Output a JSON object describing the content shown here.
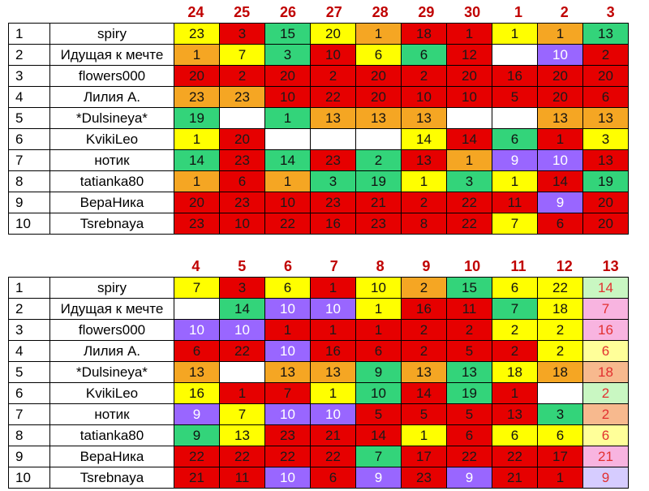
{
  "top": {
    "days": [
      "24",
      "25",
      "26",
      "27",
      "28",
      "29",
      "30",
      "1",
      "2",
      "3"
    ],
    "rows": [
      {
        "n": "1",
        "name": "spiry",
        "cells": [
          [
            "23",
            "y"
          ],
          [
            "3",
            "r"
          ],
          [
            "15",
            "g"
          ],
          [
            "20",
            "y"
          ],
          [
            "1",
            "o"
          ],
          [
            "18",
            "r"
          ],
          [
            "1",
            "r"
          ],
          [
            "1",
            "y"
          ],
          [
            "1",
            "o"
          ],
          [
            "13",
            "g"
          ]
        ]
      },
      {
        "n": "2",
        "name": "Идущая к мечте",
        "cells": [
          [
            "1",
            "o"
          ],
          [
            "7",
            "y"
          ],
          [
            "3",
            "g"
          ],
          [
            "10",
            "r"
          ],
          [
            "6",
            "y"
          ],
          [
            "6",
            "g"
          ],
          [
            "12",
            "r"
          ],
          [
            "",
            "w"
          ],
          [
            "10",
            "p"
          ],
          [
            "2",
            "r"
          ]
        ]
      },
      {
        "n": "3",
        "name": "flowers000",
        "cells": [
          [
            "20",
            "r"
          ],
          [
            "2",
            "r"
          ],
          [
            "20",
            "r"
          ],
          [
            "2",
            "r"
          ],
          [
            "20",
            "r"
          ],
          [
            "2",
            "r"
          ],
          [
            "20",
            "r"
          ],
          [
            "16",
            "r"
          ],
          [
            "20",
            "r"
          ],
          [
            "20",
            "r"
          ]
        ]
      },
      {
        "n": "4",
        "name": "Лилия А.",
        "cells": [
          [
            "23",
            "o"
          ],
          [
            "23",
            "o"
          ],
          [
            "10",
            "r"
          ],
          [
            "22",
            "r"
          ],
          [
            "20",
            "r"
          ],
          [
            "10",
            "r"
          ],
          [
            "10",
            "r"
          ],
          [
            "5",
            "r"
          ],
          [
            "20",
            "r"
          ],
          [
            "6",
            "r"
          ]
        ]
      },
      {
        "n": "5",
        "name": "*Dulsineya*",
        "cells": [
          [
            "19",
            "g"
          ],
          [
            "",
            "w"
          ],
          [
            "1",
            "g"
          ],
          [
            "13",
            "o"
          ],
          [
            "13",
            "o"
          ],
          [
            "13",
            "o"
          ],
          [
            "",
            "w"
          ],
          [
            "",
            "w"
          ],
          [
            "13",
            "o"
          ],
          [
            "13",
            "o"
          ]
        ]
      },
      {
        "n": "6",
        "name": "KvikiLeo",
        "cells": [
          [
            "1",
            "y"
          ],
          [
            "20",
            "r"
          ],
          [
            "",
            "w"
          ],
          [
            "",
            "w"
          ],
          [
            "",
            "w"
          ],
          [
            "14",
            "y"
          ],
          [
            "14",
            "r"
          ],
          [
            "6",
            "g"
          ],
          [
            "1",
            "r"
          ],
          [
            "3",
            "y"
          ]
        ]
      },
      {
        "n": "7",
        "name": "нотик",
        "cells": [
          [
            "14",
            "g"
          ],
          [
            "23",
            "r"
          ],
          [
            "14",
            "g"
          ],
          [
            "23",
            "r"
          ],
          [
            "2",
            "g"
          ],
          [
            "13",
            "r"
          ],
          [
            "1",
            "o"
          ],
          [
            "9",
            "p"
          ],
          [
            "10",
            "p"
          ],
          [
            "13",
            "r"
          ]
        ]
      },
      {
        "n": "8",
        "name": "tatianka80",
        "cells": [
          [
            "1",
            "o"
          ],
          [
            "6",
            "r"
          ],
          [
            "1",
            "o"
          ],
          [
            "3",
            "g"
          ],
          [
            "19",
            "g"
          ],
          [
            "1",
            "y"
          ],
          [
            "3",
            "g"
          ],
          [
            "1",
            "y"
          ],
          [
            "14",
            "r"
          ],
          [
            "19",
            "g"
          ]
        ]
      },
      {
        "n": "9",
        "name": "ВераНика",
        "cells": [
          [
            "20",
            "r"
          ],
          [
            "23",
            "r"
          ],
          [
            "10",
            "r"
          ],
          [
            "23",
            "r"
          ],
          [
            "21",
            "r"
          ],
          [
            "2",
            "r"
          ],
          [
            "22",
            "r"
          ],
          [
            "11",
            "r"
          ],
          [
            "9",
            "p"
          ],
          [
            "20",
            "r"
          ]
        ]
      },
      {
        "n": "10",
        "name": "Tsrebnaya",
        "cells": [
          [
            "23",
            "r"
          ],
          [
            "10",
            "r"
          ],
          [
            "22",
            "r"
          ],
          [
            "16",
            "r"
          ],
          [
            "23",
            "r"
          ],
          [
            "8",
            "r"
          ],
          [
            "22",
            "r"
          ],
          [
            "7",
            "y"
          ],
          [
            "6",
            "r"
          ],
          [
            "20",
            "r"
          ]
        ]
      }
    ]
  },
  "bottom": {
    "days": [
      "4",
      "5",
      "6",
      "7",
      "8",
      "9",
      "10",
      "11",
      "12",
      "13"
    ],
    "rows": [
      {
        "n": "1",
        "name": "spiry",
        "cells": [
          [
            "7",
            "y"
          ],
          [
            "3",
            "r"
          ],
          [
            "6",
            "y"
          ],
          [
            "1",
            "r"
          ],
          [
            "10",
            "y"
          ],
          [
            "2",
            "o"
          ],
          [
            "15",
            "g"
          ],
          [
            "6",
            "y"
          ],
          [
            "22",
            "y"
          ],
          [
            "14",
            "lg"
          ]
        ]
      },
      {
        "n": "2",
        "name": "Идущая к мечте",
        "cells": [
          [
            "",
            "w"
          ],
          [
            "14",
            "g"
          ],
          [
            "10",
            "p"
          ],
          [
            "10",
            "p"
          ],
          [
            "1",
            "y"
          ],
          [
            "16",
            "r"
          ],
          [
            "11",
            "r"
          ],
          [
            "7",
            "g"
          ],
          [
            "18",
            "y"
          ],
          [
            "7",
            "pk"
          ]
        ]
      },
      {
        "n": "3",
        "name": "flowers000",
        "cells": [
          [
            "10",
            "p"
          ],
          [
            "10",
            "p"
          ],
          [
            "1",
            "r"
          ],
          [
            "1",
            "r"
          ],
          [
            "1",
            "r"
          ],
          [
            "2",
            "r"
          ],
          [
            "2",
            "r"
          ],
          [
            "2",
            "y"
          ],
          [
            "2",
            "y"
          ],
          [
            "16",
            "pk"
          ]
        ]
      },
      {
        "n": "4",
        "name": "Лилия А.",
        "cells": [
          [
            "6",
            "r"
          ],
          [
            "22",
            "r"
          ],
          [
            "10",
            "p"
          ],
          [
            "16",
            "r"
          ],
          [
            "6",
            "r"
          ],
          [
            "2",
            "r"
          ],
          [
            "5",
            "r"
          ],
          [
            "2",
            "r"
          ],
          [
            "2",
            "y"
          ],
          [
            "6",
            "ly"
          ]
        ]
      },
      {
        "n": "5",
        "name": "*Dulsineya*",
        "cells": [
          [
            "13",
            "o"
          ],
          [
            "",
            "w"
          ],
          [
            "13",
            "o"
          ],
          [
            "13",
            "o"
          ],
          [
            "9",
            "g"
          ],
          [
            "13",
            "o"
          ],
          [
            "13",
            "g"
          ],
          [
            "18",
            "y"
          ],
          [
            "18",
            "o"
          ],
          [
            "18",
            "pc"
          ]
        ]
      },
      {
        "n": "6",
        "name": "KvikiLeo",
        "cells": [
          [
            "16",
            "y"
          ],
          [
            "1",
            "r"
          ],
          [
            "7",
            "r"
          ],
          [
            "1",
            "y"
          ],
          [
            "10",
            "g"
          ],
          [
            "14",
            "r"
          ],
          [
            "19",
            "g"
          ],
          [
            "1",
            "r"
          ],
          [
            "",
            "w"
          ],
          [
            "2",
            "lg"
          ]
        ]
      },
      {
        "n": "7",
        "name": "нотик",
        "cells": [
          [
            "9",
            "p"
          ],
          [
            "7",
            "y"
          ],
          [
            "10",
            "p"
          ],
          [
            "10",
            "p"
          ],
          [
            "5",
            "r"
          ],
          [
            "5",
            "r"
          ],
          [
            "5",
            "r"
          ],
          [
            "13",
            "r"
          ],
          [
            "3",
            "g"
          ],
          [
            "2",
            "pc"
          ]
        ]
      },
      {
        "n": "8",
        "name": "tatianka80",
        "cells": [
          [
            "9",
            "g"
          ],
          [
            "13",
            "y"
          ],
          [
            "23",
            "r"
          ],
          [
            "21",
            "r"
          ],
          [
            "14",
            "r"
          ],
          [
            "1",
            "y"
          ],
          [
            "6",
            "r"
          ],
          [
            "6",
            "y"
          ],
          [
            "6",
            "y"
          ],
          [
            "6",
            "ly"
          ]
        ]
      },
      {
        "n": "9",
        "name": "ВераНика",
        "cells": [
          [
            "22",
            "r"
          ],
          [
            "22",
            "r"
          ],
          [
            "22",
            "r"
          ],
          [
            "22",
            "r"
          ],
          [
            "7",
            "g"
          ],
          [
            "17",
            "r"
          ],
          [
            "22",
            "r"
          ],
          [
            "22",
            "r"
          ],
          [
            "17",
            "r"
          ],
          [
            "21",
            "pk"
          ]
        ]
      },
      {
        "n": "10",
        "name": "Tsrebnaya",
        "cells": [
          [
            "21",
            "r"
          ],
          [
            "11",
            "r"
          ],
          [
            "10",
            "p"
          ],
          [
            "6",
            "r"
          ],
          [
            "9",
            "p"
          ],
          [
            "23",
            "r"
          ],
          [
            "9",
            "p"
          ],
          [
            "21",
            "r"
          ],
          [
            "1",
            "r"
          ],
          [
            "9",
            "lv"
          ]
        ]
      }
    ]
  },
  "colors": {
    "r": "#e60000",
    "o": "#f5a623",
    "y": "#ffff00",
    "g": "#33d47a",
    "p": "#9966ff",
    "w": "#ffffff",
    "lg": "#c9f7c2",
    "pk": "#f8b4e0",
    "pc": "#f7b98e",
    "lv": "#d6ccff",
    "ly": "#ffff99",
    "header": "#c00000"
  }
}
